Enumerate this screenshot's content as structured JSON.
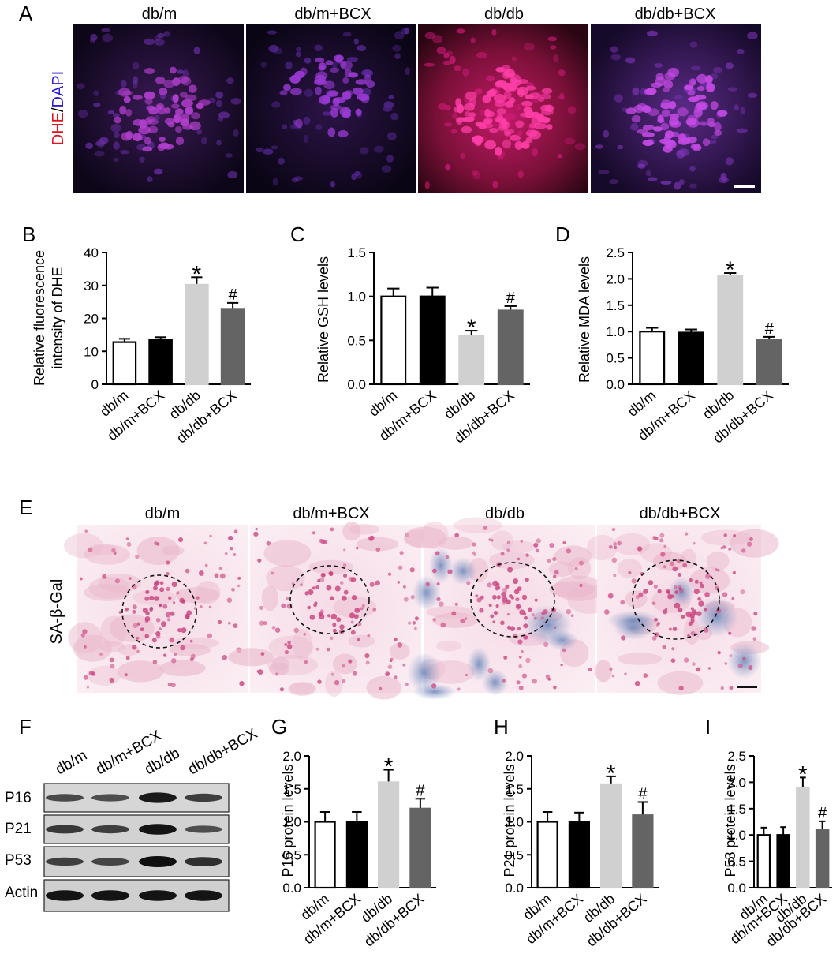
{
  "panels": {
    "A": {
      "letter": "A",
      "titles": [
        "db/m",
        "db/m+BCX",
        "db/db",
        "db/db+BCX"
      ],
      "stain_red": "DHE",
      "stain_sep": "/",
      "stain_blue": "DAPI"
    },
    "E": {
      "letter": "E",
      "titles": [
        "db/m",
        "db/m+BCX",
        "db/db",
        "db/db+BCX"
      ],
      "stain": "SA-β-Gal"
    },
    "F": {
      "letter": "F",
      "lanes": [
        "db/m",
        "db/m+BCX",
        "db/db",
        "db/db+BCX"
      ],
      "rows": [
        "P16",
        "P21",
        "P53",
        "Actin"
      ]
    }
  },
  "colors": {
    "dhe_red": "#e0141e",
    "dapi_blue": "#2a1fd0",
    "bar_dbm": "#ffffff",
    "bar_dbm_bcx": "#000000",
    "bar_dbdb": "#d0d0d0",
    "bar_dbdb_bcx": "#646464"
  },
  "chart_data": [
    {
      "id": "B",
      "letter": "B",
      "type": "bar",
      "categories": [
        "db/m",
        "db/m+BCX",
        "db/db",
        "db/db+BCX"
      ],
      "values": [
        12.8,
        13.4,
        30.2,
        22.9
      ],
      "errors": [
        1.0,
        0.9,
        2.3,
        1.8
      ],
      "annotations": [
        "",
        "",
        "*",
        "#"
      ],
      "ylabel_lines": [
        "Relative fluorescence",
        "intensity of DHE"
      ],
      "ylim": [
        0,
        40
      ],
      "yticks": [
        "0",
        "10",
        "20",
        "30",
        "40"
      ]
    },
    {
      "id": "C",
      "letter": "C",
      "type": "bar",
      "categories": [
        "db/m",
        "db/m+BCX",
        "db/db",
        "db/db+BCX"
      ],
      "values": [
        1.0,
        1.0,
        0.55,
        0.84
      ],
      "errors": [
        0.09,
        0.1,
        0.06,
        0.05
      ],
      "annotations": [
        "",
        "",
        "*",
        "#"
      ],
      "ylabel_lines": [
        "Relative GSH levels"
      ],
      "ylim": [
        0,
        1.5
      ],
      "yticks": [
        "0.0",
        "0.5",
        "1.0",
        "1.5"
      ]
    },
    {
      "id": "D",
      "letter": "D",
      "type": "bar",
      "categories": [
        "db/m",
        "db/m+BCX",
        "db/db",
        "db/db+BCX"
      ],
      "values": [
        1.0,
        0.98,
        2.05,
        0.85
      ],
      "errors": [
        0.07,
        0.06,
        0.06,
        0.05
      ],
      "annotations": [
        "",
        "",
        "*",
        "#"
      ],
      "ylabel_lines": [
        "Relative MDA levels"
      ],
      "ylim": [
        0,
        2.5
      ],
      "yticks": [
        "0.0",
        "0.5",
        "1.0",
        "1.5",
        "2.0",
        "2.5"
      ]
    },
    {
      "id": "G",
      "letter": "G",
      "type": "bar",
      "categories": [
        "db/m",
        "db/m+BCX",
        "db/db",
        "db/db+BCX"
      ],
      "values": [
        1.0,
        1.0,
        1.6,
        1.2
      ],
      "errors": [
        0.15,
        0.15,
        0.19,
        0.15
      ],
      "annotations": [
        "",
        "",
        "*",
        "#"
      ],
      "ylabel_lines": [
        "P16 protein levels"
      ],
      "ylim": [
        0,
        2.0
      ],
      "yticks": [
        "0.0",
        "0.5",
        "1.0",
        "1.5",
        "2.0"
      ]
    },
    {
      "id": "H",
      "letter": "H",
      "type": "bar",
      "categories": [
        "db/m",
        "db/m+BCX",
        "db/db",
        "db/db+BCX"
      ],
      "values": [
        1.0,
        1.0,
        1.57,
        1.1
      ],
      "errors": [
        0.15,
        0.14,
        0.12,
        0.2
      ],
      "annotations": [
        "",
        "",
        "*",
        "#"
      ],
      "ylabel_lines": [
        "P21 protein levels"
      ],
      "ylim": [
        0,
        2.0
      ],
      "yticks": [
        "0.0",
        "0.5",
        "1.0",
        "1.5",
        "2.0"
      ]
    },
    {
      "id": "I",
      "letter": "I",
      "type": "bar",
      "categories": [
        "db/m",
        "db/m+BCX",
        "db/db",
        "db/db+BCX"
      ],
      "values": [
        1.0,
        1.0,
        1.89,
        1.1
      ],
      "errors": [
        0.14,
        0.15,
        0.2,
        0.16
      ],
      "annotations": [
        "",
        "",
        "*",
        "#"
      ],
      "ylabel_lines": [
        "P53 protein levels"
      ],
      "ylim": [
        0,
        2.5
      ],
      "yticks": [
        "0.0",
        "0.5",
        "1.0",
        "1.5",
        "2.0",
        "2.5"
      ]
    }
  ]
}
